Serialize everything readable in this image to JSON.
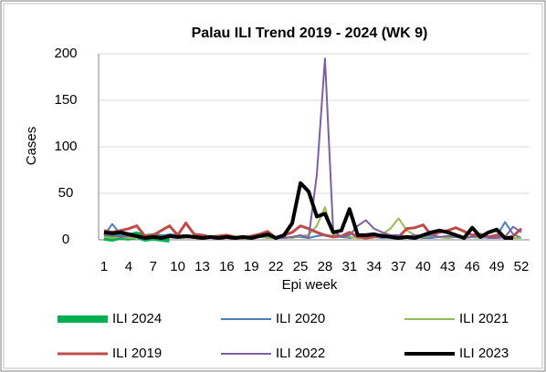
{
  "chart_data": {
    "type": "line",
    "title": "Palau ILI Trend 2019 - 2024 (WK 9)",
    "x_label": "Epi week",
    "y_label": "Cases",
    "categories": [
      "1",
      null,
      null,
      "4",
      null,
      null,
      "7",
      null,
      null,
      "10",
      null,
      null,
      "13",
      null,
      null,
      "16",
      null,
      null,
      "19",
      null,
      null,
      "22",
      null,
      null,
      "25",
      null,
      null,
      "28",
      null,
      null,
      "31",
      null,
      null,
      "34",
      null,
      null,
      "37",
      null,
      null,
      "40",
      null,
      null,
      "43",
      null,
      null,
      "46",
      null,
      null,
      "49",
      null,
      null,
      "52"
    ],
    "ylim": [
      0,
      200
    ],
    "yticks": [
      0,
      50,
      100,
      150,
      200
    ],
    "grid": true,
    "legend": "bottom",
    "series": [
      {
        "name": "ILI 2024",
        "color": "#00b050",
        "line_width": 8,
        "values": [
          3,
          2,
          4,
          3,
          5,
          2,
          3,
          2,
          1,
          null,
          null,
          null,
          null,
          null,
          null,
          null,
          null,
          null,
          null,
          null,
          null,
          null,
          null,
          null,
          null,
          null,
          null,
          null,
          null,
          null,
          null,
          null,
          null,
          null,
          null,
          null,
          null,
          null,
          null,
          null,
          null,
          null,
          null,
          null,
          null,
          null,
          null,
          null,
          null,
          null,
          null,
          null
        ]
      },
      {
        "name": "ILI 2020",
        "color": "#4a7ebb",
        "line_width": 2,
        "values": [
          5,
          17,
          6,
          5,
          4,
          3,
          5,
          4,
          6,
          5,
          4,
          3,
          2,
          3,
          2,
          2,
          3,
          2,
          2,
          3,
          4,
          2,
          2,
          3,
          3,
          2,
          4,
          5,
          4,
          3,
          2,
          3,
          4,
          3,
          2,
          3,
          2,
          2,
          3,
          2,
          2,
          3,
          2,
          3,
          2,
          3,
          2,
          3,
          4,
          19,
          6,
          2
        ]
      },
      {
        "name": "ILI 2021",
        "color": "#98b954",
        "line_width": 2,
        "values": [
          3,
          2,
          3,
          2,
          2,
          3,
          2,
          2,
          3,
          2,
          2,
          3,
          2,
          2,
          3,
          2,
          2,
          3,
          2,
          3,
          2,
          2,
          3,
          2,
          4,
          5,
          15,
          35,
          6,
          4,
          3,
          2,
          3,
          4,
          6,
          12,
          23,
          10,
          5,
          3,
          4,
          3,
          2,
          3,
          2,
          3,
          2,
          3,
          2,
          3,
          2,
          2
        ]
      },
      {
        "name": "ILI 2019",
        "color": "#be4b48",
        "line_width": 3,
        "values": [
          10,
          8,
          10,
          12,
          15,
          4,
          5,
          10,
          15,
          5,
          18,
          6,
          5,
          3,
          4,
          5,
          3,
          2,
          4,
          6,
          9,
          2,
          5,
          8,
          15,
          12,
          8,
          5,
          3,
          4,
          8,
          3,
          2,
          3,
          5,
          4,
          3,
          12,
          13,
          16,
          5,
          8,
          10,
          13,
          9,
          5,
          6,
          3,
          5,
          2,
          4,
          12
        ]
      },
      {
        "name": "ILI 2022",
        "color": "#7d60a0",
        "line_width": 2,
        "values": [
          5,
          5,
          3,
          4,
          3,
          2,
          3,
          2,
          3,
          2,
          3,
          2,
          2,
          3,
          2,
          2,
          3,
          2,
          2,
          3,
          4,
          3,
          2,
          3,
          5,
          2,
          70,
          195,
          10,
          3,
          5,
          15,
          21,
          12,
          8,
          5,
          5,
          3,
          5,
          4,
          5,
          3,
          4,
          3,
          2,
          3,
          4,
          2,
          2,
          3,
          14,
          8
        ]
      },
      {
        "name": "ILI 2023",
        "color": "#000000",
        "line_width": 4,
        "values": [
          8,
          7,
          8,
          6,
          4,
          2,
          3,
          2,
          4,
          3,
          4,
          3,
          2,
          3,
          2,
          3,
          2,
          3,
          2,
          4,
          6,
          2,
          5,
          18,
          61,
          52,
          25,
          28,
          8,
          10,
          33,
          5,
          5,
          6,
          4,
          3,
          2,
          3,
          2,
          5,
          8,
          10,
          8,
          5,
          2,
          13,
          3,
          8,
          11,
          2,
          2,
          null
        ]
      }
    ]
  }
}
